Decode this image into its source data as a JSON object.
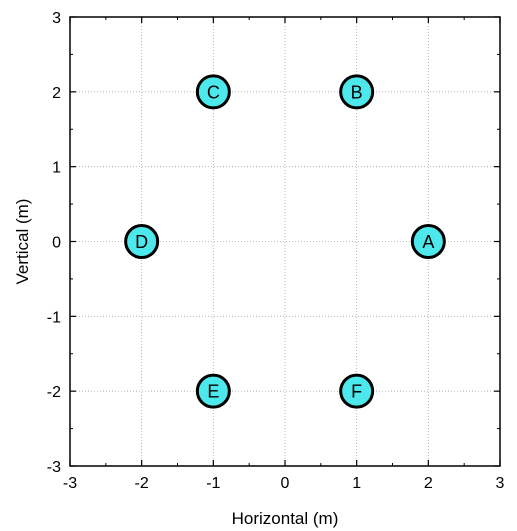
{
  "chart_data": {
    "type": "scatter",
    "title": "",
    "xlabel": "Horizontal (m)",
    "ylabel": "Vertical (m)",
    "xlim": [
      -3,
      3
    ],
    "ylim": [
      -3,
      3
    ],
    "xticks": [
      -3,
      -2,
      -1,
      0,
      1,
      2,
      3
    ],
    "yticks": [
      -3,
      -2,
      -1,
      0,
      1,
      2,
      3
    ],
    "grid": true,
    "marker_color": "#4de8ec",
    "points": [
      {
        "label": "A",
        "x": 2,
        "y": 0
      },
      {
        "label": "B",
        "x": 1,
        "y": 2
      },
      {
        "label": "C",
        "x": -1,
        "y": 2
      },
      {
        "label": "D",
        "x": -2,
        "y": 0
      },
      {
        "label": "E",
        "x": -1,
        "y": -2
      },
      {
        "label": "F",
        "x": 1,
        "y": -2
      }
    ]
  }
}
